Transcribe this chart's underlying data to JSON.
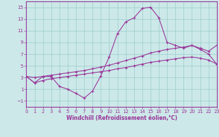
{
  "xlabel": "Windchill (Refroidissement éolien,°C)",
  "bg_color": "#cce8e8",
  "grid_color": "#99cccc",
  "line_color": "#993399",
  "xlim": [
    0,
    23
  ],
  "ylim": [
    -2,
    16
  ],
  "xticks": [
    0,
    1,
    2,
    3,
    4,
    5,
    6,
    7,
    8,
    9,
    10,
    11,
    12,
    13,
    14,
    15,
    16,
    17,
    18,
    19,
    20,
    21,
    22,
    23
  ],
  "yticks": [
    -1,
    1,
    3,
    5,
    7,
    9,
    11,
    13,
    15
  ],
  "series1_x": [
    0,
    1,
    2,
    3,
    4,
    5,
    6,
    7,
    8,
    9,
    10,
    11,
    12,
    13,
    14,
    15,
    16,
    17,
    18,
    19,
    20,
    21,
    22,
    23
  ],
  "series1_y": [
    3.2,
    2.1,
    3.2,
    3.2,
    1.5,
    1.0,
    0.3,
    -0.5,
    0.7,
    3.3,
    6.5,
    10.5,
    12.5,
    13.2,
    14.8,
    15.0,
    13.2,
    9.0,
    8.5,
    8.0,
    8.5,
    7.8,
    7.0,
    5.3
  ],
  "series2_x": [
    0,
    1,
    2,
    3,
    4,
    5,
    6,
    7,
    8,
    9,
    10,
    11,
    12,
    13,
    14,
    15,
    16,
    17,
    18,
    19,
    20,
    21,
    22,
    23
  ],
  "series2_y": [
    3.2,
    3.0,
    3.2,
    3.4,
    3.6,
    3.8,
    4.0,
    4.2,
    4.5,
    4.8,
    5.1,
    5.5,
    5.9,
    6.3,
    6.7,
    7.2,
    7.5,
    7.8,
    8.0,
    8.2,
    8.5,
    8.0,
    7.5,
    8.5
  ],
  "series3_x": [
    0,
    1,
    2,
    3,
    4,
    5,
    6,
    7,
    8,
    9,
    10,
    11,
    12,
    13,
    14,
    15,
    16,
    17,
    18,
    19,
    20,
    21,
    22,
    23
  ],
  "series3_y": [
    3.2,
    2.1,
    2.5,
    2.8,
    3.0,
    3.2,
    3.4,
    3.6,
    3.8,
    4.0,
    4.2,
    4.5,
    4.7,
    5.0,
    5.3,
    5.6,
    5.8,
    6.0,
    6.2,
    6.4,
    6.5,
    6.3,
    6.0,
    5.3
  ]
}
